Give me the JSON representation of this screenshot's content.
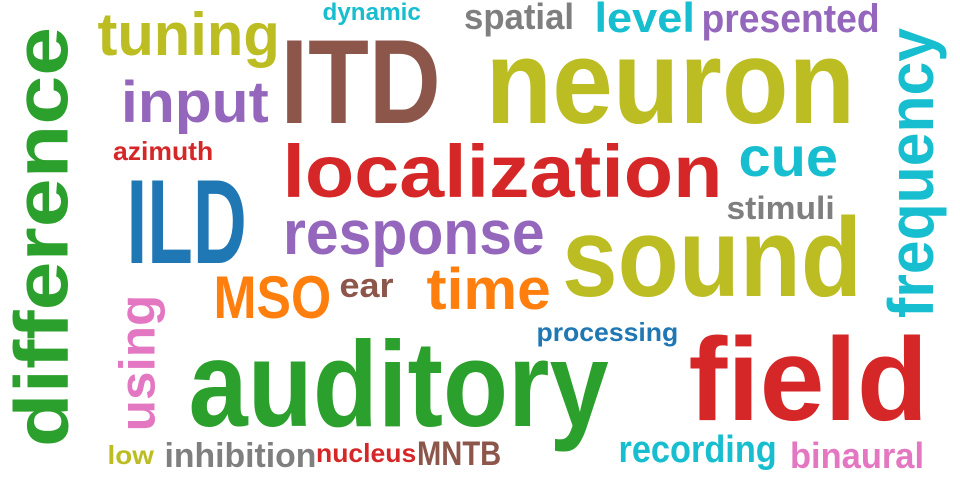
{
  "words": [
    {
      "text": "ITD",
      "color": "#8c564b"
    },
    {
      "text": "neuron",
      "color": "#bcbd22"
    },
    {
      "text": "localization",
      "color": "#d62728"
    },
    {
      "text": "sound",
      "color": "#bcbd22"
    },
    {
      "text": "auditory",
      "color": "#2ca02c"
    },
    {
      "text": "field",
      "color": "#d62728"
    },
    {
      "text": "difference",
      "color": "#2ca02c"
    },
    {
      "text": "ILD",
      "color": "#1f77b4"
    },
    {
      "text": "response",
      "color": "#9467bd"
    },
    {
      "text": "frequency",
      "color": "#17becf"
    },
    {
      "text": "tuning",
      "color": "#bcbd22"
    },
    {
      "text": "input",
      "color": "#9467bd"
    },
    {
      "text": "cue",
      "color": "#17becf"
    },
    {
      "text": "time",
      "color": "#ff7f0e"
    },
    {
      "text": "MSO",
      "color": "#ff7f0e"
    },
    {
      "text": "level",
      "color": "#17becf"
    },
    {
      "text": "presented",
      "color": "#9467bd"
    },
    {
      "text": "using",
      "color": "#e377c2"
    },
    {
      "text": "spatial",
      "color": "#7f7f7f"
    },
    {
      "text": "stimuli",
      "color": "#7f7f7f"
    },
    {
      "text": "ear",
      "color": "#8c564b"
    },
    {
      "text": "processing",
      "color": "#1f77b4"
    },
    {
      "text": "recording",
      "color": "#17becf"
    },
    {
      "text": "binaural",
      "color": "#e377c2"
    },
    {
      "text": "inhibition",
      "color": "#7f7f7f"
    },
    {
      "text": "MNTB",
      "color": "#8c564b"
    },
    {
      "text": "nucleus",
      "color": "#d62728"
    },
    {
      "text": "low",
      "color": "#bcbd22"
    },
    {
      "text": "azimuth",
      "color": "#d62728"
    },
    {
      "text": "dynamic",
      "color": "#17becf"
    }
  ]
}
